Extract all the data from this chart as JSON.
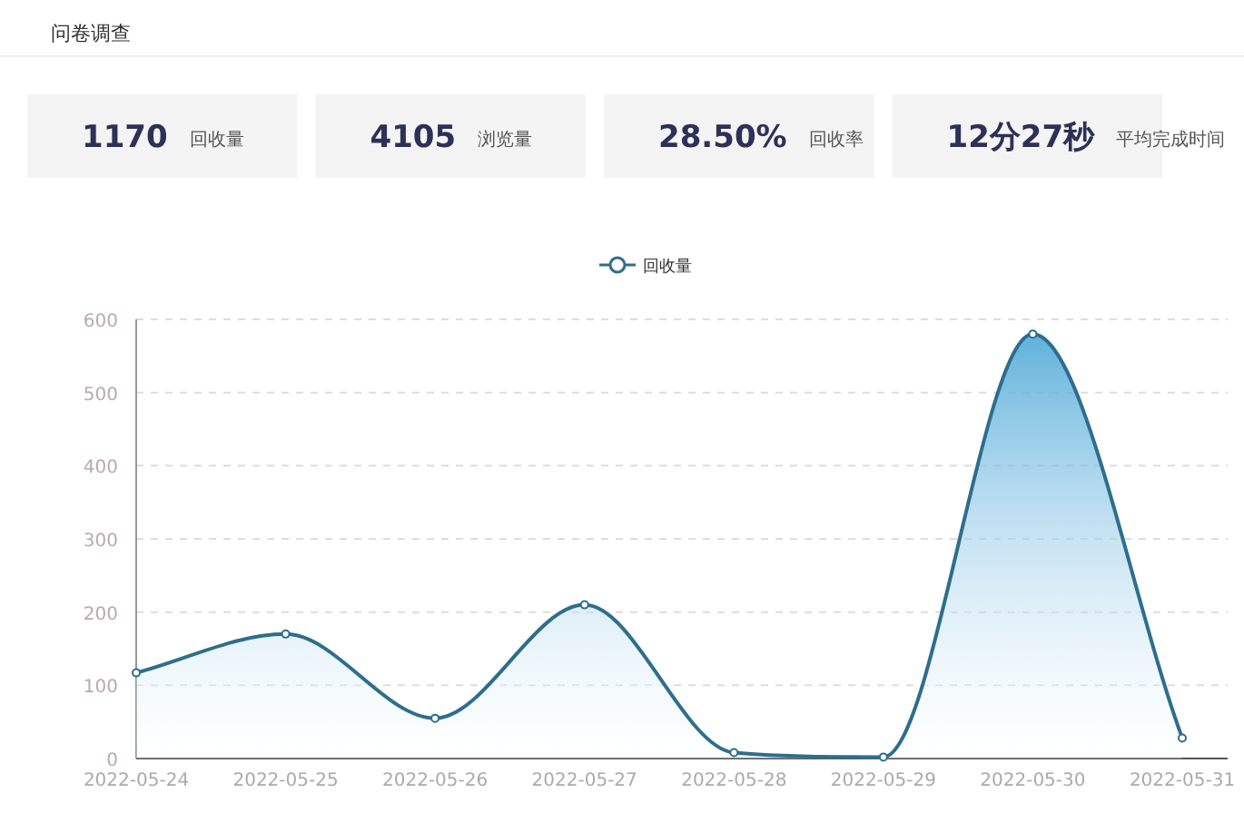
{
  "chart_data": [
    {
      "type": "other",
      "title": "问卷调查",
      "annotations": [
        "1170",
        "回收量",
        "4105",
        "浏览量",
        "28.50%",
        "回收率",
        "12分27秒",
        "平均完成时间"
      ]
    },
    {
      "type": "area",
      "categories": [
        "2022-05-24",
        "2022-05-25",
        "2022-05-26",
        "2022-05-27",
        "2022-05-28",
        "2022-05-29",
        "2022-05-30",
        "2022-05-31"
      ],
      "series": [
        {
          "name": "回收量",
          "color": "#2e6e8c",
          "values": [
            117,
            170,
            55,
            210,
            8,
            2,
            580,
            28
          ]
        }
      ],
      "ylim": [
        0,
        600
      ],
      "yticks": [
        0,
        100,
        200,
        300,
        400,
        500,
        600
      ],
      "grid": "y",
      "legend": "top",
      "marker": "circle",
      "line_style": "solid"
    }
  ]
}
